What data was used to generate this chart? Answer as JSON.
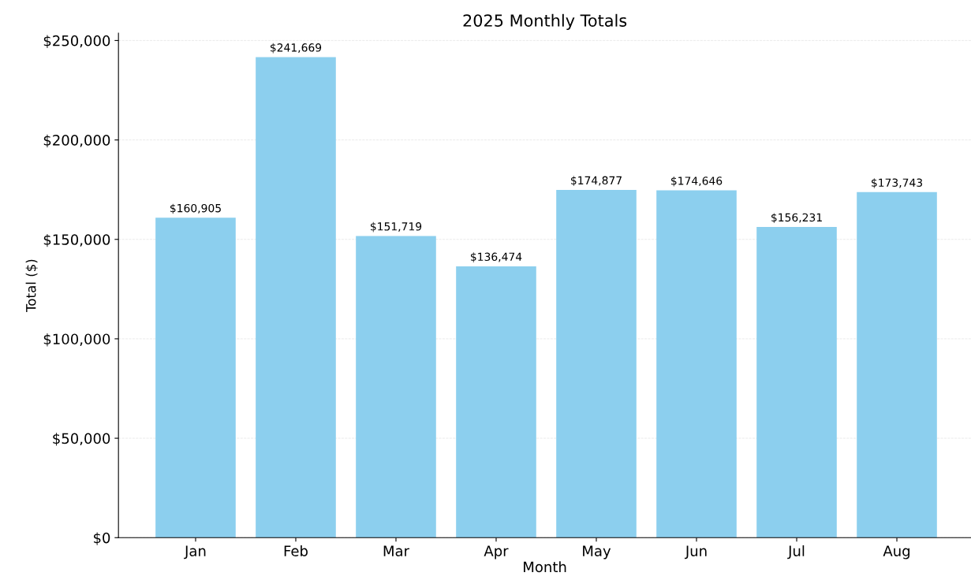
{
  "chart_data": {
    "type": "bar",
    "title": "2025 Monthly Totals",
    "xlabel": "Month",
    "ylabel": "Total ($)",
    "categories": [
      "Jan",
      "Feb",
      "Mar",
      "Apr",
      "May",
      "Jun",
      "Jul",
      "Aug"
    ],
    "values": [
      160905,
      241669,
      151719,
      136474,
      174877,
      174646,
      156231,
      173743
    ],
    "value_labels": [
      "$160,905",
      "$241,669",
      "$151,719",
      "$136,474",
      "$174,877",
      "$174,646",
      "$156,231",
      "$173,743"
    ],
    "color": "#8ccfee",
    "ylim": [
      0,
      253750
    ],
    "yticks": [
      {
        "value": 0,
        "label": "$0"
      },
      {
        "value": 50000,
        "label": "$50,000"
      },
      {
        "value": 100000,
        "label": "$100,000"
      },
      {
        "value": 150000,
        "label": "$150,000"
      },
      {
        "value": 200000,
        "label": "$200,000"
      },
      {
        "value": 250000,
        "label": "$250,000"
      }
    ],
    "grid": "y"
  }
}
